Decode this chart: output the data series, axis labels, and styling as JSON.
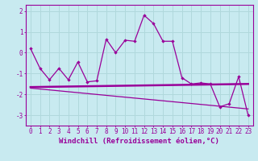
{
  "background_color": "#c8eaf0",
  "line_color": "#990099",
  "grid_color": "#b0d8dc",
  "xlabel": "Windchill (Refroidissement éolien,°C)",
  "xlabel_fontsize": 6.5,
  "tick_fontsize": 5.5,
  "ylim": [
    -3.5,
    2.3
  ],
  "xlim": [
    -0.5,
    23.5
  ],
  "yticks": [
    -3,
    -2,
    -1,
    0,
    1,
    2
  ],
  "xticks": [
    0,
    1,
    2,
    3,
    4,
    5,
    6,
    7,
    8,
    9,
    10,
    11,
    12,
    13,
    14,
    15,
    16,
    17,
    18,
    19,
    20,
    21,
    22,
    23
  ],
  "line1_x": [
    0,
    1,
    2,
    3,
    4,
    5,
    6,
    7,
    8,
    9,
    10,
    11,
    12,
    13,
    14,
    15,
    16,
    17,
    18,
    19,
    20,
    21,
    22,
    23
  ],
  "line1_y": [
    0.2,
    -0.75,
    -1.3,
    -0.75,
    -1.3,
    -0.45,
    -1.4,
    -1.35,
    0.65,
    0.0,
    0.6,
    0.55,
    1.8,
    1.4,
    0.55,
    0.55,
    -1.2,
    -1.5,
    -1.45,
    -1.5,
    -2.6,
    -2.45,
    -1.15,
    -3.0
  ],
  "line2_x": [
    0,
    23
  ],
  "line2_y": [
    -1.65,
    -1.5
  ],
  "line3_x": [
    0,
    23
  ],
  "line3_y": [
    -1.7,
    -2.7
  ]
}
